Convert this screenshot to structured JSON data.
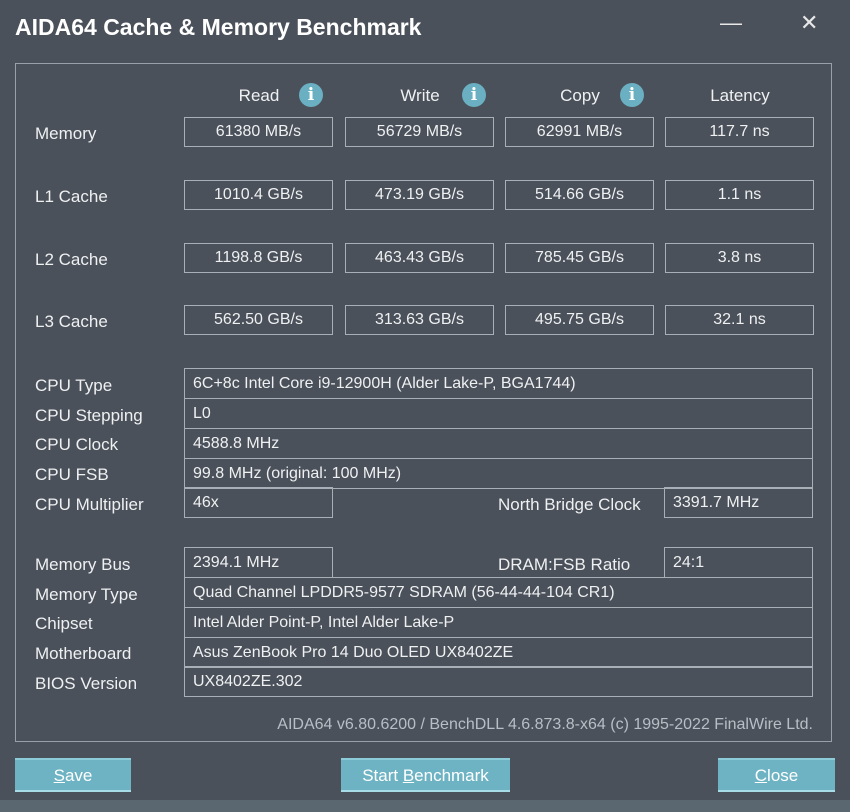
{
  "window": {
    "title": "AIDA64 Cache & Memory Benchmark",
    "close_icon": "close-icon",
    "minimize_icon": "minimize-icon"
  },
  "headers": {
    "read": "Read",
    "write": "Write",
    "copy": "Copy",
    "latency": "Latency"
  },
  "bench_rows": [
    {
      "label": "Memory",
      "read": "61380 MB/s",
      "write": "56729 MB/s",
      "copy": "62991 MB/s",
      "latency": "117.7 ns"
    },
    {
      "label": "L1 Cache",
      "read": "1010.4 GB/s",
      "write": "473.19 GB/s",
      "copy": "514.66 GB/s",
      "latency": "1.1 ns"
    },
    {
      "label": "L2 Cache",
      "read": "1198.8 GB/s",
      "write": "463.43 GB/s",
      "copy": "785.45 GB/s",
      "latency": "3.8 ns"
    },
    {
      "label": "L3 Cache",
      "read": "562.50 GB/s",
      "write": "313.63 GB/s",
      "copy": "495.75 GB/s",
      "latency": "32.1 ns"
    }
  ],
  "cpu": {
    "type_label": "CPU Type",
    "type": "6C+8c Intel Core i9-12900H  (Alder Lake-P, BGA1744)",
    "stepping_label": "CPU Stepping",
    "stepping": "L0",
    "clock_label": "CPU Clock",
    "clock": "4588.8 MHz",
    "fsb_label": "CPU FSB",
    "fsb": "99.8 MHz  (original: 100 MHz)",
    "multiplier_label": "CPU Multiplier",
    "multiplier": "46x",
    "nb_clock_label": "North Bridge Clock",
    "nb_clock": "3391.7 MHz"
  },
  "memory": {
    "bus_label": "Memory Bus",
    "bus": "2394.1 MHz",
    "ratio_label": "DRAM:FSB Ratio",
    "ratio": "24:1",
    "type_label": "Memory Type",
    "type": "Quad Channel LPDDR5-9577 SDRAM  (56-44-44-104 CR1)",
    "chipset_label": "Chipset",
    "chipset": "Intel Alder Point-P, Intel Alder Lake-P",
    "motherboard_label": "Motherboard",
    "motherboard": "Asus ZenBook Pro 14 Duo OLED UX8402ZE",
    "bios_label": "BIOS Version",
    "bios": "UX8402ZE.302"
  },
  "footer": "AIDA64 v6.80.6200 / BenchDLL 4.6.873.8-x64  (c) 1995-2022 FinalWire Ltd.",
  "buttons": {
    "save_a": "S",
    "save_b": "ave",
    "start_a": "Start ",
    "start_b": "B",
    "start_c": "enchmark",
    "close_a": "C",
    "close_b": "lose"
  },
  "colors": {
    "background": "#4b515a",
    "button": "#6db3c3",
    "info_icon": "#6ab0c2"
  }
}
